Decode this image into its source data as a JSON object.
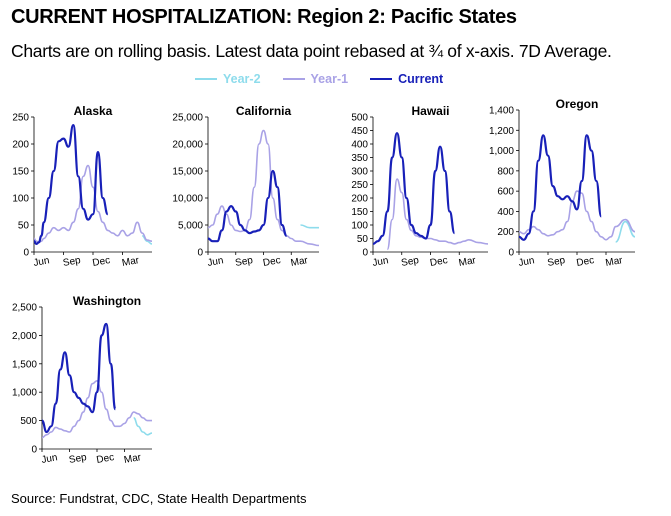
{
  "page": {
    "title": "CURRENT HOSPITALIZATION:  Region 2: Pacific States",
    "subtitle": "Charts are on rolling basis. Latest data point rebased at ¾ of x-axis. 7D Average.",
    "source": "Source: Fundstrat,  CDC,  State Health Departments"
  },
  "legend": [
    {
      "label": "Year-2",
      "color": "#8edcec"
    },
    {
      "label": "Year-1",
      "color": "#a9a2e6"
    },
    {
      "label": "Current",
      "color": "#1820b8"
    }
  ],
  "x_tick_labels": [
    "Jun",
    "Sep",
    "Dec",
    "Mar"
  ],
  "chart_data": [
    {
      "type": "line",
      "title": "Alaska",
      "ylim": [
        0,
        250
      ],
      "y_ticks": [
        "0",
        "50",
        "100",
        "150",
        "200",
        "250"
      ],
      "x_tick_labels": [
        "Jun",
        "Sep",
        "Dec",
        "Mar"
      ],
      "x_months": [
        0,
        0.25,
        0.5,
        0.75,
        1,
        1.5,
        2,
        2.5,
        3,
        3.5,
        4,
        4.5,
        5,
        5.5,
        6,
        6.5,
        7,
        7.5,
        8,
        8.5,
        9,
        9.5,
        10,
        10.5,
        11,
        11.5,
        12
      ],
      "series": [
        {
          "name": "Year-2",
          "color": "#8edcec",
          "values": [
            null,
            null,
            null,
            null,
            null,
            null,
            null,
            null,
            null,
            null,
            null,
            null,
            null,
            null,
            null,
            null,
            null,
            null,
            null,
            null,
            null,
            null,
            null,
            null,
            30,
            20,
            15
          ]
        },
        {
          "name": "Year-1",
          "color": "#a9a2e6",
          "values": [
            25,
            20,
            18,
            20,
            25,
            35,
            45,
            40,
            45,
            40,
            55,
            80,
            140,
            160,
            120,
            75,
            55,
            40,
            35,
            30,
            40,
            30,
            35,
            55,
            35,
            22,
            20
          ]
        },
        {
          "name": "Current",
          "color": "#1820b8",
          "values": [
            20,
            15,
            18,
            30,
            55,
            100,
            150,
            205,
            210,
            195,
            235,
            140,
            80,
            60,
            70,
            185,
            100,
            70,
            null,
            null,
            null,
            null,
            null,
            null,
            null,
            null,
            null
          ]
        }
      ]
    },
    {
      "type": "line",
      "title": "California",
      "ylim": [
        0,
        25000
      ],
      "y_ticks": [
        "0",
        "5,000",
        "10,000",
        "15,000",
        "20,000",
        "25,000"
      ],
      "x_tick_labels": [
        "Jun",
        "Sep",
        "Dec",
        "Mar"
      ],
      "x_months": [
        0,
        0.5,
        1,
        1.5,
        2,
        2.5,
        3,
        3.5,
        4,
        4.5,
        5,
        5.5,
        6,
        6.5,
        7,
        7.5,
        8,
        8.5,
        9,
        9.5,
        10,
        11,
        12
      ],
      "series": [
        {
          "name": "Year-2",
          "color": "#8edcec",
          "values": [
            null,
            null,
            null,
            null,
            null,
            null,
            null,
            null,
            null,
            null,
            null,
            null,
            null,
            null,
            null,
            null,
            null,
            null,
            null,
            null,
            5000,
            4500,
            4500
          ]
        },
        {
          "name": "Year-1",
          "color": "#a9a2e6",
          "values": [
            4500,
            5000,
            7000,
            8500,
            7000,
            5000,
            4000,
            3800,
            4000,
            6000,
            12000,
            20000,
            22500,
            20000,
            10000,
            6000,
            4000,
            3000,
            2500,
            2000,
            2000,
            1500,
            1200
          ]
        },
        {
          "name": "Current",
          "color": "#1820b8",
          "values": [
            2500,
            2000,
            2000,
            4000,
            7500,
            8500,
            7500,
            5000,
            4000,
            3500,
            3800,
            4000,
            5000,
            10000,
            15000,
            12000,
            5000,
            3000,
            null,
            null,
            null,
            null,
            null
          ]
        }
      ]
    },
    {
      "type": "line",
      "title": "Hawaii",
      "ylim": [
        0,
        500
      ],
      "y_ticks": [
        "0",
        "50",
        "100",
        "150",
        "200",
        "250",
        "300",
        "350",
        "400",
        "450",
        "500"
      ],
      "x_tick_labels": [
        "Jun",
        "Sep",
        "Dec",
        "Mar"
      ],
      "x_months": [
        0,
        0.5,
        1,
        1.5,
        2,
        2.5,
        3,
        3.5,
        4,
        4.5,
        5,
        5.5,
        6,
        6.5,
        7,
        7.5,
        8,
        8.5,
        9,
        9.5,
        10,
        11,
        12
      ],
      "series": [
        {
          "name": "Year-2",
          "color": "#8edcec",
          "values": [
            null,
            null,
            null,
            null,
            null,
            null,
            null,
            null,
            null,
            null,
            null,
            null,
            null,
            null,
            null,
            null,
            null,
            null,
            null,
            null,
            null,
            null,
            null
          ]
        },
        {
          "name": "Year-1",
          "color": "#a9a2e6",
          "values": [
            null,
            null,
            null,
            10,
            120,
            270,
            220,
            120,
            80,
            60,
            55,
            50,
            50,
            45,
            40,
            40,
            35,
            30,
            35,
            40,
            45,
            35,
            30
          ]
        },
        {
          "name": "Current",
          "color": "#1820b8",
          "values": [
            30,
            40,
            60,
            150,
            350,
            440,
            350,
            200,
            100,
            70,
            60,
            50,
            100,
            300,
            390,
            300,
            150,
            70,
            null,
            null,
            null,
            null,
            null
          ]
        }
      ]
    },
    {
      "type": "line",
      "title": "Oregon",
      "ylim": [
        0,
        1400
      ],
      "y_ticks": [
        "0",
        "200",
        "400",
        "600",
        "800",
        "1,000",
        "1,200",
        "1,400"
      ],
      "x_tick_labels": [
        "Jun",
        "Sep",
        "Dec",
        "Mar"
      ],
      "x_months": [
        0,
        0.5,
        1,
        1.5,
        2,
        2.5,
        3,
        3.5,
        4,
        4.5,
        5,
        5.5,
        6,
        6.5,
        7,
        7.5,
        8,
        8.5,
        9,
        9.5,
        10,
        11,
        12
      ],
      "series": [
        {
          "name": "Year-2",
          "color": "#8edcec",
          "values": [
            null,
            null,
            null,
            null,
            null,
            null,
            null,
            null,
            null,
            null,
            null,
            null,
            null,
            null,
            null,
            null,
            null,
            null,
            null,
            null,
            100,
            300,
            150
          ]
        },
        {
          "name": "Year-1",
          "color": "#a9a2e6",
          "values": [
            200,
            180,
            220,
            250,
            220,
            180,
            160,
            170,
            200,
            220,
            300,
            500,
            600,
            580,
            400,
            300,
            200,
            150,
            120,
            150,
            250,
            320,
            200
          ]
        },
        {
          "name": "Current",
          "color": "#1820b8",
          "values": [
            150,
            120,
            180,
            400,
            900,
            1150,
            950,
            650,
            550,
            520,
            550,
            500,
            420,
            700,
            1150,
            1000,
            700,
            350,
            null,
            null,
            null,
            null,
            null
          ]
        }
      ]
    },
    {
      "type": "line",
      "title": "Washington",
      "ylim": [
        0,
        2500
      ],
      "y_ticks": [
        "0",
        "500",
        "1,000",
        "1,500",
        "2,000",
        "2,500"
      ],
      "x_tick_labels": [
        "Jun",
        "Sep",
        "Dec",
        "Mar"
      ],
      "x_months": [
        0,
        0.5,
        1,
        1.5,
        2,
        2.5,
        3,
        3.5,
        4,
        4.5,
        5,
        5.5,
        6,
        6.5,
        7,
        7.5,
        8,
        8.5,
        9,
        9.5,
        10,
        10.5,
        11,
        11.5,
        12
      ],
      "series": [
        {
          "name": "Year-2",
          "color": "#8edcec",
          "values": [
            null,
            null,
            null,
            null,
            null,
            null,
            null,
            null,
            null,
            null,
            null,
            null,
            null,
            null,
            null,
            null,
            null,
            null,
            null,
            null,
            550,
            400,
            300,
            250,
            280
          ]
        },
        {
          "name": "Year-1",
          "color": "#a9a2e6",
          "values": [
            200,
            250,
            300,
            380,
            350,
            320,
            300,
            400,
            500,
            650,
            900,
            1150,
            1200,
            1000,
            700,
            500,
            400,
            400,
            450,
            550,
            650,
            620,
            550,
            500,
            500
          ]
        },
        {
          "name": "Current",
          "color": "#1820b8",
          "values": [
            500,
            300,
            400,
            800,
            1400,
            1700,
            1300,
            1000,
            900,
            800,
            750,
            650,
            1000,
            2000,
            2200,
            1500,
            700,
            null,
            null,
            null,
            null,
            null,
            null,
            null,
            null
          ]
        }
      ]
    }
  ]
}
